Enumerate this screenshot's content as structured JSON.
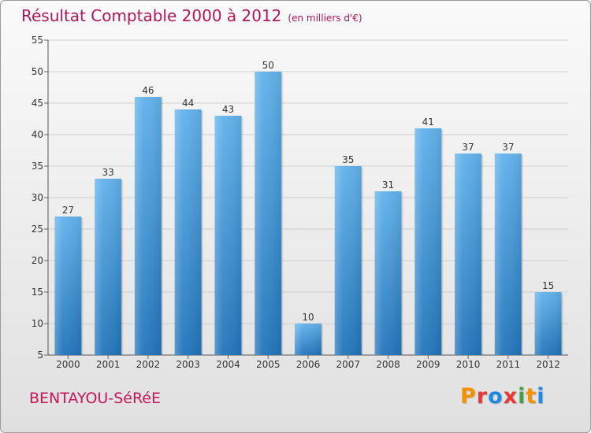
{
  "header": {
    "title": "Résultat Comptable 2000 à 2012",
    "unit": "(en milliers d'€)"
  },
  "footer": {
    "commune": "BENTAYOU-SéRéE",
    "brand": "Proxiti",
    "brand_colors": [
      "#f39200",
      "#e53935",
      "#1e88e5",
      "#e53935",
      "#43a047",
      "#f39200",
      "#1e88e5"
    ]
  },
  "colors": {
    "bar_top": "#62b3ec",
    "bar_bottom": "#2275bb",
    "title": "#b4155a",
    "grid": "#cfcfcf"
  },
  "chart_data": {
    "type": "bar",
    "title": "Résultat Comptable 2000 à 2012",
    "xlabel": "",
    "ylabel": "",
    "categories": [
      "2000",
      "2001",
      "2002",
      "2003",
      "2004",
      "2005",
      "2006",
      "2007",
      "2008",
      "2009",
      "2010",
      "2011",
      "2012"
    ],
    "values": [
      27,
      33,
      46,
      44,
      43,
      50,
      10,
      35,
      31,
      41,
      37,
      37,
      15
    ],
    "ylim": [
      5,
      55
    ],
    "yticks": [
      5,
      10,
      15,
      20,
      25,
      30,
      35,
      40,
      45,
      50,
      55
    ],
    "grid": true
  }
}
